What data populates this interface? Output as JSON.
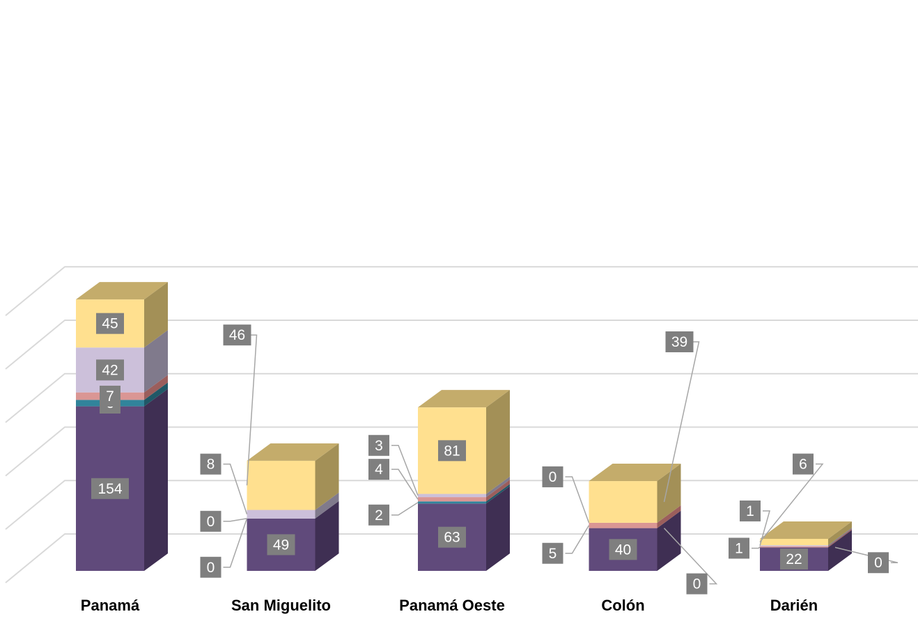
{
  "chart_data": {
    "type": "bar",
    "stacked": true,
    "three_d": true,
    "categories": [
      "Panamá",
      "San Miguelito",
      "Panamá Oeste",
      "Colón",
      "Darién"
    ],
    "series": [
      {
        "color": "#604a7b",
        "side_color": "#3f2f53",
        "top_color": "#4f3d66",
        "values": [
          154,
          49,
          63,
          40,
          22
        ],
        "labels": [
          "154",
          "49",
          "63",
          "40",
          "22"
        ]
      },
      {
        "color": "#31849b",
        "side_color": "#205867",
        "top_color": "#276a7c",
        "values": [
          6,
          0,
          2,
          0,
          0
        ],
        "labels": [
          "6",
          "0",
          "2",
          "0",
          "0"
        ]
      },
      {
        "color": "#da9694",
        "side_color": "#9b5e5c",
        "top_color": "#c48280",
        "values": [
          7,
          0,
          4,
          5,
          1
        ],
        "labels": [
          "7",
          "0",
          "4",
          "5",
          "1"
        ]
      },
      {
        "color": "#ccc0da",
        "side_color": "#807a8c",
        "top_color": "#a89db8",
        "values": [
          42,
          8,
          3,
          0,
          1
        ],
        "labels": [
          "42",
          "8",
          "3",
          "0",
          "1"
        ]
      },
      {
        "color": "#ffe08f",
        "side_color": "#a39057",
        "top_color": "#c4ac6b",
        "values": [
          45,
          46,
          81,
          39,
          6
        ],
        "labels": [
          "45",
          "46",
          "81",
          "39",
          "6"
        ]
      }
    ],
    "ylim": [
      0,
      250
    ],
    "grid": true,
    "legend": "none",
    "title": "",
    "xlabel": "",
    "ylabel": ""
  }
}
